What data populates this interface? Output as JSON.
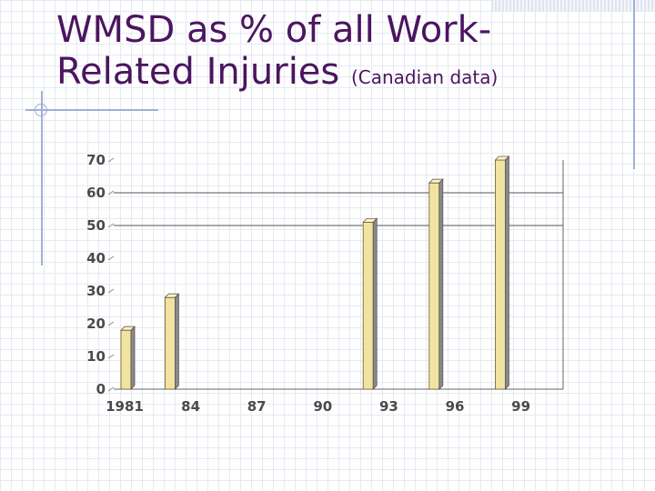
{
  "slide": {
    "title_line1": "WMSD as % of all Work-",
    "title_line2": "Related Injuries",
    "subtitle": "(Canadian data)"
  },
  "chart_data": {
    "type": "bar",
    "title": "WMSD as % of all Work-Related Injuries",
    "subtitle": "(Canadian data)",
    "xlabel": "",
    "ylabel": "",
    "x_tick_labels": [
      "1981",
      "84",
      "87",
      "90",
      "93",
      "96",
      "99"
    ],
    "y_ticks": [
      0,
      10,
      20,
      30,
      40,
      50,
      60,
      70
    ],
    "ylim": [
      0,
      70
    ],
    "x_range": [
      1981,
      2000
    ],
    "gridlines_at": [
      50,
      60
    ],
    "series": [
      {
        "x": [
          1981,
          1983,
          1992,
          1995,
          1998
        ],
        "values": [
          18,
          28,
          51,
          63,
          70
        ]
      }
    ],
    "colors": {
      "bar_front": "#f3e3a0",
      "bar_top": "#fbf3cf",
      "bar_side": "#8a8a8a",
      "title": "#4b1560",
      "tick_text": "#4a4a4a"
    }
  }
}
